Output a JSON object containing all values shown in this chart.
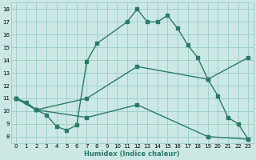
{
  "xlabel": "Humidex (Indice chaleur)",
  "bg_color": "#cce8e4",
  "grid_color": "#99cccc",
  "line_color": "#2a7a6a",
  "xlim": [
    -0.5,
    23.5
  ],
  "ylim": [
    7.5,
    18.5
  ],
  "yticks": [
    8,
    9,
    10,
    11,
    12,
    13,
    14,
    15,
    16,
    17,
    18
  ],
  "xticks": [
    0,
    1,
    2,
    3,
    4,
    5,
    6,
    7,
    8,
    9,
    10,
    11,
    12,
    13,
    14,
    15,
    16,
    17,
    18,
    19,
    20,
    21,
    22,
    23
  ],
  "line1_x": [
    0,
    1,
    2,
    3,
    4,
    5,
    6,
    7,
    8,
    11,
    12,
    13,
    14,
    15,
    16,
    17,
    18,
    19,
    20,
    21,
    22,
    23
  ],
  "line1_y": [
    11.0,
    10.7,
    10.1,
    9.7,
    8.8,
    8.5,
    8.9,
    13.9,
    15.3,
    17.0,
    18.0,
    17.0,
    17.0,
    17.5,
    16.5,
    15.2,
    14.2,
    12.5,
    11.2,
    9.5,
    9.0,
    7.8
  ],
  "line2_x": [
    0,
    2,
    7,
    12,
    19,
    23
  ],
  "line2_y": [
    11.0,
    10.1,
    11.0,
    13.5,
    12.5,
    14.2
  ],
  "line3_x": [
    0,
    2,
    7,
    12,
    19,
    23
  ],
  "line3_y": [
    11.0,
    10.1,
    9.5,
    10.5,
    8.0,
    7.8
  ],
  "marker_size": 2.5,
  "line_width": 1.0
}
